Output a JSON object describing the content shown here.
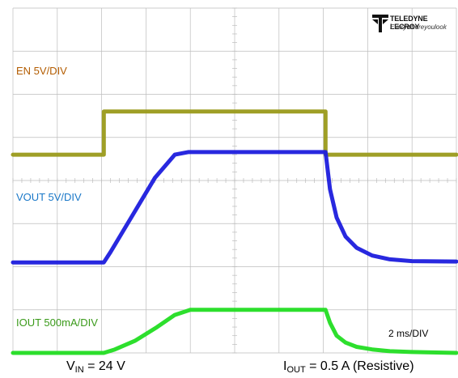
{
  "chart_data": {
    "type": "line",
    "title": "",
    "xlabel": "",
    "ylabel": "",
    "grid": true,
    "divisions": {
      "x": 10,
      "y": 8
    },
    "time_per_div": "2 ms/DIV",
    "x_unit": "ms",
    "xlim": [
      0,
      20
    ],
    "series": [
      {
        "name": "EN 5V/DIV",
        "color": "#9a9a1a",
        "label_color": "#b35c00",
        "offset_div": 4.6,
        "scale_v_per_div": 5,
        "x": [
          0,
          4.1,
          4.1,
          14.1,
          14.1,
          20
        ],
        "y": [
          0,
          0,
          5,
          5,
          0,
          0
        ]
      },
      {
        "name": "VOUT 5V/DIV",
        "color": "#1c1cdd",
        "label_color": "#1a78c8",
        "offset_div": 2.1,
        "scale_v_per_div": 5,
        "x": [
          0,
          4.1,
          4.4,
          5.4,
          6.4,
          7.3,
          7.9,
          10,
          12,
          14.1,
          14.3,
          14.6,
          15.0,
          15.5,
          16.2,
          17.0,
          18.0,
          20
        ],
        "y": [
          0,
          0,
          1.2,
          5.5,
          9.8,
          12.5,
          12.8,
          12.8,
          12.8,
          12.8,
          8.5,
          5.2,
          3.0,
          1.7,
          0.8,
          0.35,
          0.15,
          0.1
        ]
      },
      {
        "name": "IOUT 500mA/DIV",
        "color": "#22dd22",
        "label_color": "#3a9a1a",
        "offset_div": 0.0,
        "scale_v_per_div": 0.5,
        "x": [
          0,
          4.1,
          4.6,
          5.5,
          6.5,
          7.3,
          8.0,
          10,
          12,
          14.1,
          14.3,
          14.6,
          15.0,
          15.5,
          16.2,
          17.0,
          18.0,
          20
        ],
        "y": [
          0,
          0,
          0.04,
          0.14,
          0.3,
          0.44,
          0.5,
          0.5,
          0.5,
          0.5,
          0.35,
          0.2,
          0.12,
          0.07,
          0.04,
          0.02,
          0.01,
          0.0
        ]
      }
    ],
    "annotations": [
      {
        "text": "2 ms/DIV",
        "position": "bottom-right"
      }
    ]
  },
  "brand": {
    "name": "TELEDYNE LECROY",
    "tagline": "Everywhereyoulook"
  },
  "footer": {
    "vin_main": "V",
    "vin_sub": "IN",
    "vin_rest": " = 24 V",
    "iout_main": "I",
    "iout_sub": "OUT",
    "iout_rest": " = 0.5 A (Resistive)"
  },
  "colors": {
    "grid": "#bdbdbd",
    "background": "#ffffff"
  }
}
